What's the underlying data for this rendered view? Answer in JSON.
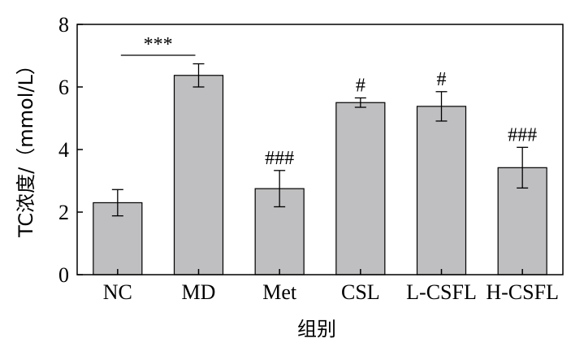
{
  "chart_data": {
    "type": "bar",
    "categories": [
      "NC",
      "MD",
      "Met",
      "CSL",
      "L-CSFL",
      "H-CSFL"
    ],
    "values": [
      2.3,
      6.37,
      2.75,
      5.5,
      5.38,
      3.42
    ],
    "errors": [
      0.42,
      0.37,
      0.58,
      0.15,
      0.47,
      0.65
    ],
    "significance": [
      "",
      "",
      "###",
      "#",
      "#",
      "###"
    ],
    "comparison": {
      "from": "NC",
      "to": "MD",
      "label": "***"
    },
    "xlabel": "组别",
    "ylabel": "TC浓度/（mmol/L）",
    "ylim": [
      0,
      8
    ],
    "yticks": [
      0,
      2,
      4,
      6,
      8
    ],
    "bar_color": "#bfbfc1",
    "grid": false,
    "legend": "none"
  }
}
